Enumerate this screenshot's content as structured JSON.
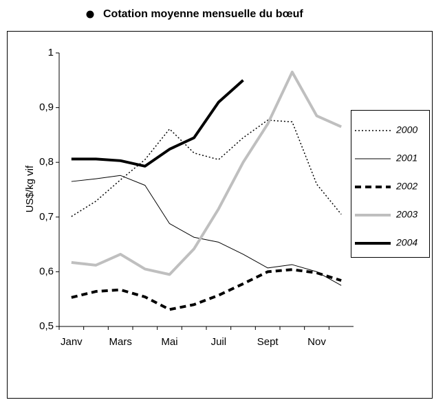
{
  "chart_data": {
    "type": "line",
    "title": "Cotation moyenne mensuelle du bœuf",
    "y_label": "US$/kg vif",
    "categories": [
      "Janv",
      null,
      "Mars",
      null,
      "Mai",
      null,
      "Juil",
      null,
      "Sept",
      null,
      "Nov",
      null
    ],
    "ylim": [
      0.5,
      1
    ],
    "yticks": [
      {
        "value": 0.5,
        "label": "0,5"
      },
      {
        "value": 0.6,
        "label": "0,6"
      },
      {
        "value": 0.7,
        "label": "0,7"
      },
      {
        "value": 0.8,
        "label": "0,8"
      },
      {
        "value": 0.9,
        "label": "0,9"
      },
      1
    ],
    "legend": "right",
    "series": [
      {
        "name": "2000",
        "color": "#000000",
        "line_style": "dotted",
        "values": [
          0.701,
          0.729,
          0.768,
          0.805,
          0.861,
          0.817,
          0.805,
          0.845,
          0.877,
          0.874,
          0.76,
          0.705
        ]
      },
      {
        "name": "2001",
        "color": "#000000",
        "line_style": "thin",
        "values": [
          0.765,
          0.77,
          0.776,
          0.758,
          0.688,
          0.663,
          0.654,
          0.632,
          0.607,
          0.613,
          0.6,
          0.575
        ]
      },
      {
        "name": "2002",
        "color": "#000000",
        "line_style": "dashed",
        "values": [
          0.553,
          0.564,
          0.567,
          0.554,
          0.531,
          0.54,
          0.557,
          0.578,
          0.6,
          0.604,
          0.598,
          0.584
        ]
      },
      {
        "name": "2003",
        "color": "#bfbfbf",
        "line_style": "thick",
        "values": [
          0.617,
          0.612,
          0.632,
          0.605,
          0.595,
          0.642,
          0.715,
          0.8,
          0.87,
          0.965,
          0.885,
          0.865
        ]
      },
      {
        "name": "2004",
        "color": "#000000",
        "line_style": "thick",
        "values": [
          0.806,
          0.806,
          0.803,
          0.793,
          0.824,
          0.845,
          0.91,
          0.95,
          null,
          null,
          null,
          null
        ]
      }
    ]
  }
}
